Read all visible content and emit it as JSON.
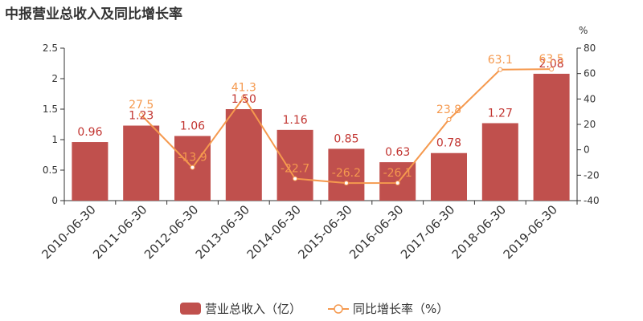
{
  "title": "中报营业总收入及同比增长率",
  "chart_data": {
    "type": "bar",
    "categories": [
      "2010-06-30",
      "2011-06-30",
      "2012-06-30",
      "2013-06-30",
      "2014-06-30",
      "2015-06-30",
      "2016-06-30",
      "2017-06-30",
      "2018-06-30",
      "2019-06-30"
    ],
    "series": [
      {
        "name": "营业总收入（亿）",
        "type": "bar",
        "axis": "left",
        "color": "#c0504d",
        "values": [
          0.96,
          1.23,
          1.06,
          1.5,
          1.16,
          0.85,
          0.63,
          0.78,
          1.27,
          2.08
        ],
        "labels": [
          "0.96",
          "1.23",
          "1.06",
          "1.50",
          "1.16",
          "0.85",
          "0.63",
          "0.78",
          "1.27",
          "2.08"
        ]
      },
      {
        "name": "同比增长率（%）",
        "type": "line",
        "axis": "right",
        "color": "#f5994e",
        "values": [
          null,
          27.5,
          -13.9,
          41.3,
          -22.7,
          -26.2,
          -26.1,
          23.8,
          63.1,
          63.5
        ],
        "labels": [
          "",
          "27.5",
          "-13.9",
          "41.3",
          "-22.7",
          "-26.2",
          "-26.1",
          "23.8",
          "63.1",
          "63.5"
        ]
      }
    ],
    "y_left": {
      "ylim": [
        0,
        2.5
      ],
      "ticks": [
        "0",
        "0.5",
        "1",
        "1.5",
        "2",
        "2.5"
      ]
    },
    "y_right": {
      "ylim": [
        -40,
        80
      ],
      "ticks": [
        "-40",
        "-20",
        "0",
        "20",
        "40",
        "60",
        "80"
      ],
      "unit": "%"
    },
    "legend_position": "bottom-center",
    "grid": false
  }
}
